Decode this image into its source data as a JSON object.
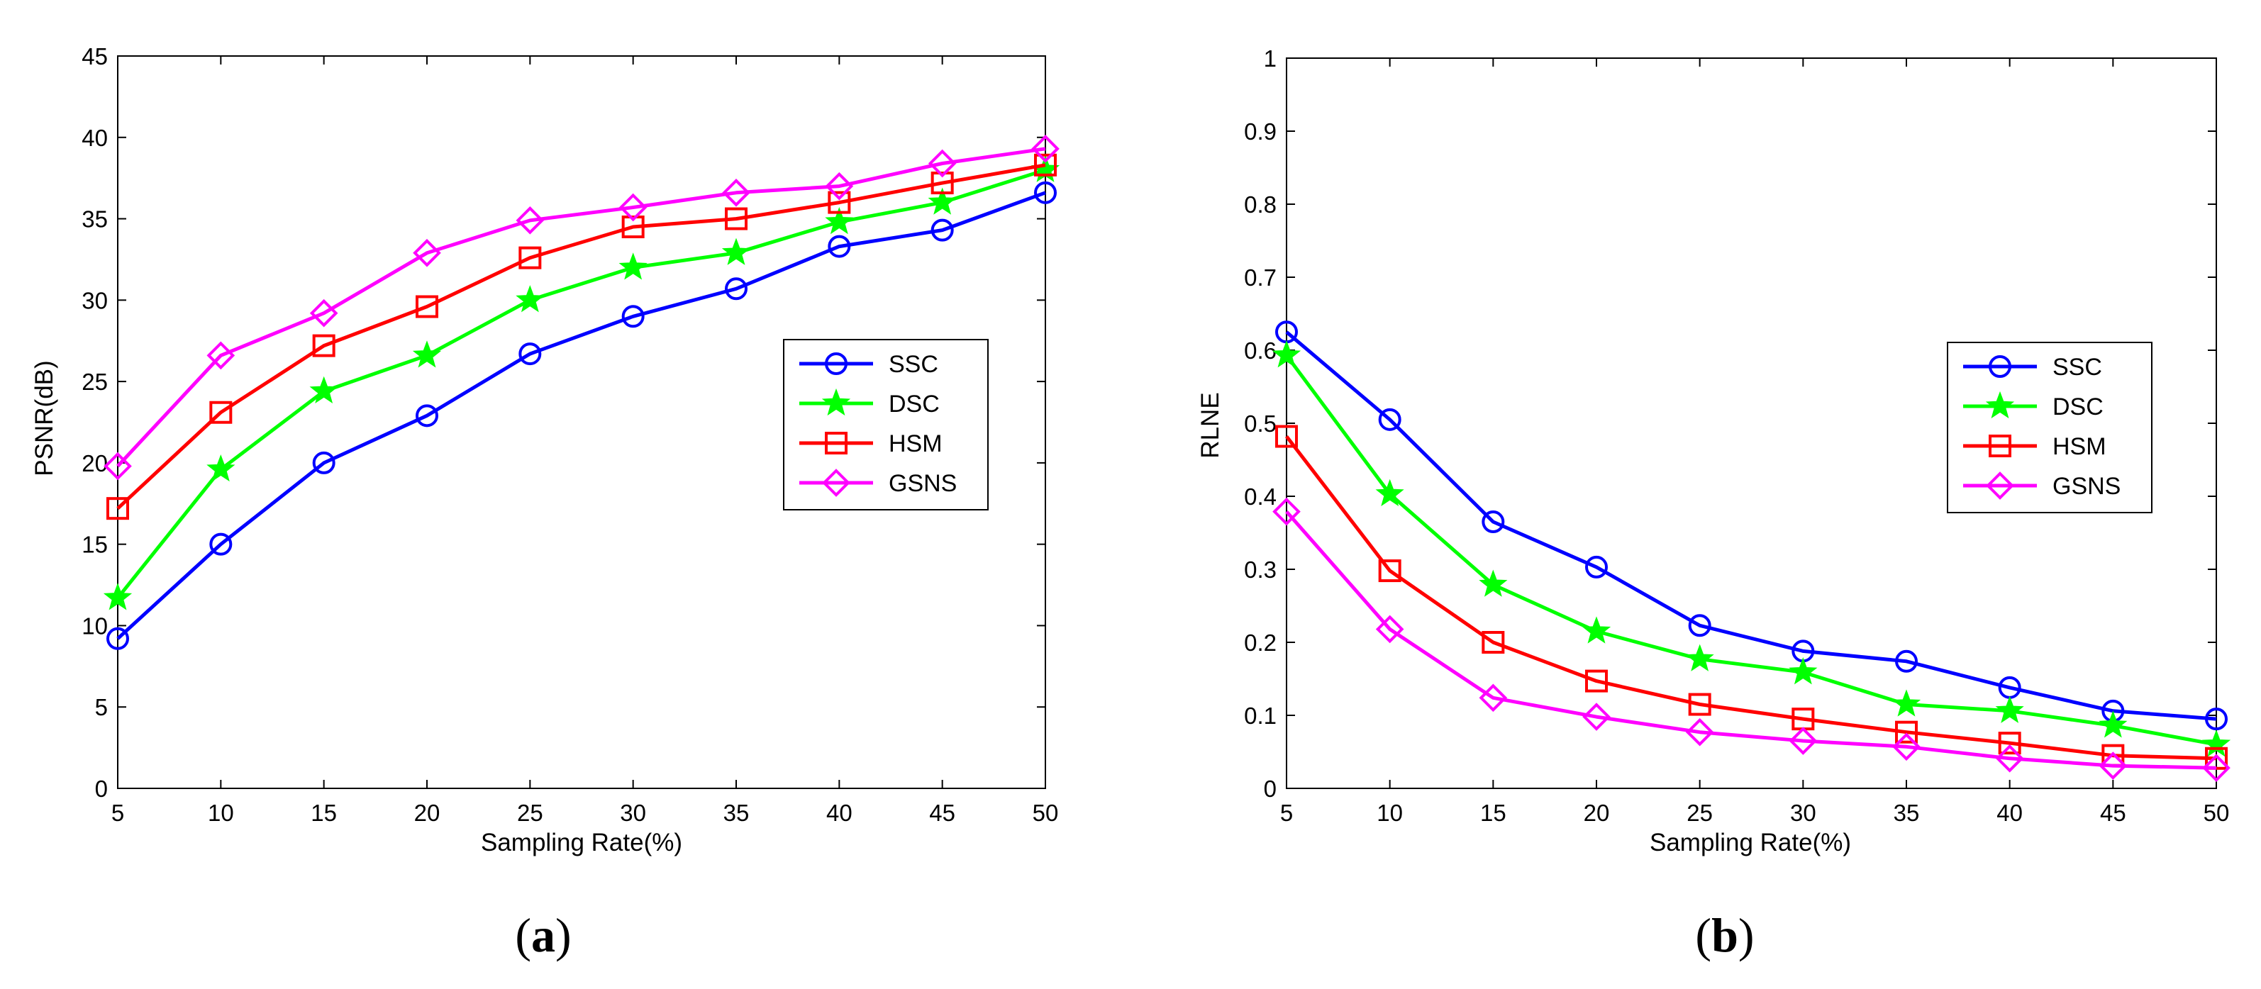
{
  "chart_data": [
    {
      "type": "line",
      "caption": {
        "open": "(",
        "letter": "a",
        "close": ")"
      },
      "xlabel": "Sampling Rate(%)",
      "ylabel": "PSNR(dB)",
      "xlim": [
        5,
        50
      ],
      "ylim": [
        0,
        45
      ],
      "xticks": [
        5,
        10,
        15,
        20,
        25,
        30,
        35,
        40,
        45,
        50
      ],
      "yticks": [
        0,
        5,
        10,
        15,
        20,
        25,
        30,
        35,
        40,
        45
      ],
      "legend_position": "center-right",
      "x": [
        5,
        10,
        15,
        20,
        25,
        30,
        35,
        40,
        45,
        50
      ],
      "series": [
        {
          "name": "SSC",
          "color": "#0000ff",
          "marker": "circle",
          "values": [
            9.2,
            15.0,
            20.0,
            22.9,
            26.7,
            29.0,
            30.7,
            33.3,
            34.3,
            36.6
          ]
        },
        {
          "name": "DSC",
          "color": "#00ff00",
          "marker": "star",
          "values": [
            11.7,
            19.6,
            24.4,
            26.6,
            30.0,
            32.0,
            32.9,
            34.8,
            36.0,
            38.0
          ]
        },
        {
          "name": "HSM",
          "color": "#ff0000",
          "marker": "square",
          "values": [
            17.2,
            23.1,
            27.2,
            29.6,
            32.6,
            34.5,
            35.0,
            36.0,
            37.2,
            38.3
          ]
        },
        {
          "name": "GSNS",
          "color": "#ff00ff",
          "marker": "diamond",
          "values": [
            19.8,
            26.6,
            29.2,
            32.9,
            34.9,
            35.7,
            36.6,
            37.0,
            38.4,
            39.3
          ]
        }
      ]
    },
    {
      "type": "line",
      "caption": {
        "open": "(",
        "letter": "b",
        "close": ")"
      },
      "xlabel": "Sampling Rate(%)",
      "ylabel": "RLNE",
      "xlim": [
        5,
        50
      ],
      "ylim": [
        0,
        1
      ],
      "xticks": [
        5,
        10,
        15,
        20,
        25,
        30,
        35,
        40,
        45,
        50
      ],
      "yticks": [
        0,
        0.1,
        0.2,
        0.3,
        0.4,
        0.5,
        0.6,
        0.7,
        0.8,
        0.9,
        1
      ],
      "legend_position": "center-right",
      "x": [
        5,
        10,
        15,
        20,
        25,
        30,
        35,
        40,
        45,
        50
      ],
      "series": [
        {
          "name": "SSC",
          "color": "#0000ff",
          "marker": "circle",
          "values": [
            0.625,
            0.505,
            0.365,
            0.303,
            0.223,
            0.188,
            0.174,
            0.138,
            0.106,
            0.095
          ]
        },
        {
          "name": "DSC",
          "color": "#00ff00",
          "marker": "star",
          "values": [
            0.593,
            0.403,
            0.279,
            0.215,
            0.177,
            0.159,
            0.115,
            0.106,
            0.086,
            0.06
          ]
        },
        {
          "name": "HSM",
          "color": "#ff0000",
          "marker": "square",
          "values": [
            0.482,
            0.298,
            0.2,
            0.147,
            0.115,
            0.095,
            0.077,
            0.062,
            0.045,
            0.041
          ]
        },
        {
          "name": "GSNS",
          "color": "#ff00ff",
          "marker": "diamond",
          "values": [
            0.379,
            0.218,
            0.124,
            0.098,
            0.077,
            0.065,
            0.057,
            0.041,
            0.031,
            0.028
          ]
        }
      ]
    }
  ]
}
